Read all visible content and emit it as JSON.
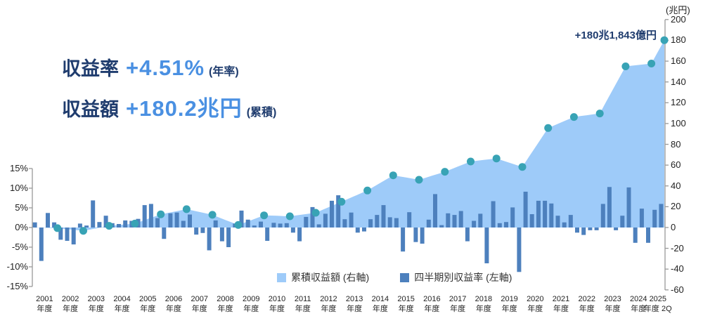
{
  "headline": {
    "rate_label": "収益率",
    "rate_value": "+4.51%",
    "rate_note": "(年率)",
    "amount_label": "収益額",
    "amount_value": "+180.2兆円",
    "amount_note": "(累積)"
  },
  "colors": {
    "navy": "#1f3c6e",
    "blue": "#4a90e2",
    "area": "#9ecbf9",
    "bar": "#4d80bd",
    "dot": "#38a3b5",
    "axis": "#999999"
  },
  "chart_data": {
    "type": "combo (area + bar)",
    "annotation": "+180兆1,843億円",
    "legend": [
      {
        "label": "累積収益額 (右軸)",
        "series": "cumulative_area"
      },
      {
        "label": "四半期別収益率 (左軸)",
        "series": "quarterly_bars"
      }
    ],
    "left_axis": {
      "title": "四半期別収益率",
      "tick_values": [
        15,
        10,
        5,
        0,
        -5,
        -10,
        -15
      ],
      "tick_labels": [
        "15%",
        "10%",
        "5%",
        "0%",
        "-5%",
        "-10%",
        "-15%"
      ]
    },
    "right_axis": {
      "title": "累積収益額",
      "unit": "(兆円)",
      "tick_values": [
        200,
        180,
        160,
        140,
        120,
        100,
        80,
        60,
        40,
        20,
        0,
        -20,
        -40,
        -60
      ]
    },
    "x_labels": [
      {
        "year": "2001",
        "sub": "年度"
      },
      {
        "year": "2002",
        "sub": "年度"
      },
      {
        "year": "2003",
        "sub": "年度"
      },
      {
        "year": "2004",
        "sub": "年度"
      },
      {
        "year": "2005",
        "sub": "年度"
      },
      {
        "year": "2006",
        "sub": "年度"
      },
      {
        "year": "2007",
        "sub": "年度"
      },
      {
        "year": "2008",
        "sub": "年度"
      },
      {
        "year": "2009",
        "sub": "年度"
      },
      {
        "year": "2010",
        "sub": "年度"
      },
      {
        "year": "2011",
        "sub": "年度"
      },
      {
        "year": "2012",
        "sub": "年度"
      },
      {
        "year": "2013",
        "sub": "年度"
      },
      {
        "year": "2014",
        "sub": "年度"
      },
      {
        "year": "2015",
        "sub": "年度"
      },
      {
        "year": "2016",
        "sub": "年度"
      },
      {
        "year": "2017",
        "sub": "年度"
      },
      {
        "year": "2018",
        "sub": "年度"
      },
      {
        "year": "2019",
        "sub": "年度"
      },
      {
        "year": "2020",
        "sub": "年度"
      },
      {
        "year": "2021",
        "sub": "年度"
      },
      {
        "year": "2022",
        "sub": "年度"
      },
      {
        "year": "2023",
        "sub": "年度"
      },
      {
        "year": "2024",
        "sub": "年度"
      },
      {
        "year": "2025",
        "sub": "年度 2Q"
      }
    ],
    "quarterly_return_pct": [
      1.3,
      -8.5,
      3.7,
      1.3,
      -3.1,
      -3.4,
      -4.3,
      1.0,
      0.5,
      6.9,
      1.4,
      3.0,
      1.1,
      0.9,
      1.8,
      1.7,
      2.2,
      5.7,
      6.0,
      2.4,
      -2.9,
      3.6,
      3.8,
      1.7,
      3.3,
      -1.8,
      -1.4,
      -5.8,
      1.8,
      -3.5,
      -5.0,
      1.0,
      4.3,
      2.0,
      0.5,
      1.5,
      -3.4,
      1.2,
      1.0,
      1.1,
      -1.3,
      -3.5,
      2.7,
      5.2,
      0.8,
      3.5,
      6.8,
      8.2,
      2.1,
      3.8,
      -1.3,
      -1.0,
      2.1,
      3.2,
      5.7,
      2.6,
      2.4,
      -6.1,
      3.9,
      -3.7,
      -4.1,
      2.0,
      8.5,
      0.6,
      3.6,
      3.2,
      4.2,
      -3.5,
      1.7,
      3.5,
      -9.1,
      6.7,
      1.1,
      1.4,
      5.1,
      -11.3,
      9.1,
      3.4,
      6.8,
      6.8,
      6.1,
      3.0,
      1.3,
      3.2,
      -1.3,
      -1.9,
      -0.7,
      -0.7,
      6.0,
      10.3,
      -0.7,
      3.0,
      10.2,
      -3.9,
      4.8,
      -3.9,
      4.5,
      6.0
    ],
    "cumulative_trillion_yen_fy_end": [
      -0.6,
      -3.2,
      1.6,
      3.8,
      12.7,
      17.6,
      12.2,
      2.4,
      11.7,
      10.8,
      14.2,
      24.8,
      35.6,
      50.2,
      45.9,
      53.6,
      63.5,
      66.4,
      58.3,
      95.7,
      106.3,
      109.7,
      155.0,
      157.7,
      180.2
    ],
    "cumulative_latest": 180.2,
    "layout_hint": "light-blue area = cumulative amount on right axis; steel-blue bars = quarterly return % on left axis; teal dots mark fiscal-year-end cumulative values; legend bottom center; no gridlines"
  }
}
